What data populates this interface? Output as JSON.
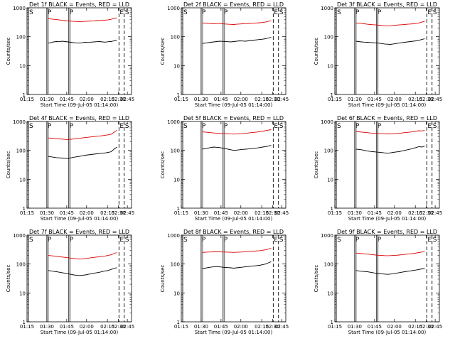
{
  "chart_data": [
    {
      "type": "line",
      "title": "Det 1f BLACK = Events, RED = LLD",
      "xlabel": "Start Time (09-Jul-05 01:14:00)",
      "ylabel": "Counts/sec",
      "yscale": "log",
      "ylim": [
        1,
        1000
      ],
      "y_ticks": [
        "1",
        "10",
        "100",
        "1000"
      ],
      "x_ticks": [
        "01:15",
        "01:30",
        "01:45",
        "02:00",
        "02:15",
        "02:30",
        "02:45"
      ],
      "markers": [
        "S",
        "P",
        "P",
        "E",
        "S"
      ],
      "series": [
        {
          "name": "Events",
          "color": "#000000",
          "values": [
            60,
            62,
            66,
            68,
            67,
            70,
            68,
            66,
            64,
            62,
            61,
            60,
            62,
            64,
            63,
            65,
            66,
            67,
            68,
            66,
            65,
            67,
            68,
            72,
            75
          ]
        },
        {
          "name": "LLD",
          "color": "#dd0000",
          "values": [
            420,
            410,
            400,
            390,
            380,
            370,
            360,
            350,
            345,
            340,
            335,
            330,
            335,
            340,
            345,
            350,
            355,
            360,
            365,
            370,
            375,
            385,
            400,
            430,
            450
          ]
        }
      ]
    },
    {
      "type": "line",
      "title": "Det 2f BLACK = Events, RED = LLD",
      "xlabel": "Start Time (09-Jul-05 01:14:00)",
      "ylabel": "Counts/sec",
      "yscale": "log",
      "ylim": [
        1,
        1000
      ],
      "y_ticks": [
        "1",
        "10",
        "100",
        "1000"
      ],
      "x_ticks": [
        "01:15",
        "01:30",
        "01:45",
        "02:00",
        "02:15",
        "02:30",
        "02:45"
      ],
      "markers": [
        "S",
        "P",
        "P",
        "E",
        "S"
      ],
      "series": [
        {
          "name": "Events",
          "color": "#000000",
          "values": [
            58,
            60,
            62,
            64,
            66,
            68,
            70,
            69,
            68,
            67,
            66,
            68,
            70,
            72,
            71,
            70,
            72,
            74,
            76,
            78,
            80,
            82,
            85,
            90,
            95
          ]
        },
        {
          "name": "LLD",
          "color": "#dd0000",
          "values": [
            300,
            295,
            290,
            285,
            280,
            285,
            290,
            280,
            275,
            270,
            268,
            265,
            270,
            275,
            280,
            285,
            288,
            290,
            295,
            300,
            305,
            310,
            320,
            340,
            360
          ]
        }
      ]
    },
    {
      "type": "line",
      "title": "Det 3f BLACK = Events, RED = LLD",
      "xlabel": "Start Time (09-Jul-05 01:14:00)",
      "ylabel": "Counts/sec",
      "yscale": "log",
      "ylim": [
        1,
        1000
      ],
      "y_ticks": [
        "1",
        "10",
        "100",
        "1000"
      ],
      "x_ticks": [
        "01:15",
        "01:30",
        "01:45",
        "02:00",
        "02:15",
        "02:30",
        "02:45"
      ],
      "markers": [
        "S",
        "P",
        "P",
        "E",
        "S"
      ],
      "series": [
        {
          "name": "Events",
          "color": "#000000",
          "values": [
            70,
            68,
            66,
            65,
            64,
            63,
            62,
            61,
            60,
            58,
            56,
            55,
            54,
            56,
            58,
            60,
            62,
            64,
            66,
            68,
            70,
            72,
            75,
            80,
            85
          ]
        },
        {
          "name": "LLD",
          "color": "#dd0000",
          "values": [
            300,
            295,
            290,
            280,
            270,
            265,
            260,
            255,
            250,
            245,
            240,
            238,
            240,
            245,
            250,
            255,
            260,
            265,
            270,
            275,
            280,
            290,
            300,
            320,
            340
          ]
        }
      ]
    },
    {
      "type": "line",
      "title": "Det 4f BLACK = Events, RED = LLD",
      "xlabel": "Start Time (09-Jul-05 01:14:00)",
      "ylabel": "Counts/sec",
      "yscale": "log",
      "ylim": [
        1,
        1000
      ],
      "y_ticks": [
        "1",
        "10",
        "100",
        "1000"
      ],
      "x_ticks": [
        "01:15",
        "01:30",
        "01:45",
        "02:00",
        "02:15",
        "02:30",
        "02:45"
      ],
      "markers": [
        "S",
        "P",
        "P",
        "E",
        "S"
      ],
      "series": [
        {
          "name": "Events",
          "color": "#000000",
          "values": [
            62,
            60,
            58,
            56,
            55,
            54,
            53,
            52,
            55,
            58,
            60,
            62,
            65,
            68,
            70,
            72,
            74,
            76,
            78,
            80,
            82,
            85,
            90,
            110,
            130
          ]
        },
        {
          "name": "LLD",
          "color": "#dd0000",
          "values": [
            270,
            265,
            260,
            255,
            250,
            245,
            240,
            238,
            242,
            248,
            255,
            262,
            270,
            278,
            285,
            292,
            300,
            308,
            315,
            325,
            335,
            345,
            360,
            420,
            500
          ]
        }
      ]
    },
    {
      "type": "line",
      "title": "Det 5f BLACK = Events, RED = LLD",
      "xlabel": "Start Time (09-Jul-05 01:14:00)",
      "ylabel": "Counts/sec",
      "yscale": "log",
      "ylim": [
        1,
        1000
      ],
      "y_ticks": [
        "1",
        "10",
        "100",
        "1000"
      ],
      "x_ticks": [
        "01:15",
        "01:30",
        "01:45",
        "02:00",
        "02:15",
        "02:30",
        "02:45"
      ],
      "markers": [
        "S",
        "P",
        "P",
        "E",
        "S"
      ],
      "series": [
        {
          "name": "Events",
          "color": "#000000",
          "values": [
            110,
            115,
            120,
            125,
            130,
            128,
            125,
            120,
            115,
            110,
            105,
            100,
            102,
            105,
            108,
            110,
            112,
            115,
            118,
            120,
            125,
            130,
            135,
            140,
            150
          ]
        },
        {
          "name": "LLD",
          "color": "#dd0000",
          "values": [
            440,
            430,
            420,
            410,
            400,
            395,
            390,
            385,
            380,
            375,
            370,
            368,
            370,
            375,
            380,
            390,
            400,
            410,
            420,
            430,
            445,
            460,
            480,
            500,
            520
          ]
        }
      ]
    },
    {
      "type": "line",
      "title": "Det 6f BLACK = Events, RED = LLD",
      "xlabel": "Start Time (09-Jul-05 01:14:00)",
      "ylabel": "Counts/sec",
      "yscale": "log",
      "ylim": [
        1,
        1000
      ],
      "y_ticks": [
        "1",
        "10",
        "100",
        "1000"
      ],
      "x_ticks": [
        "01:15",
        "01:30",
        "01:45",
        "02:00",
        "02:15",
        "02:30",
        "02:45"
      ],
      "markers": [
        "S",
        "P",
        "P",
        "E",
        "S"
      ],
      "series": [
        {
          "name": "Events",
          "color": "#000000",
          "values": [
            110,
            108,
            105,
            100,
            95,
            92,
            90,
            88,
            86,
            84,
            82,
            80,
            82,
            85,
            88,
            90,
            95,
            100,
            105,
            110,
            118,
            125,
            135,
            130,
            140
          ]
        },
        {
          "name": "LLD",
          "color": "#dd0000",
          "values": [
            450,
            440,
            430,
            420,
            410,
            400,
            395,
            390,
            385,
            380,
            375,
            372,
            375,
            380,
            385,
            390,
            400,
            410,
            420,
            430,
            445,
            460,
            480,
            470,
            490
          ]
        }
      ]
    },
    {
      "type": "line",
      "title": "Det 7f BLACK = Events, RED = LLD",
      "xlabel": "Start Time (09-Jul-05 01:14:00)",
      "ylabel": "Counts/sec",
      "yscale": "log",
      "ylim": [
        1,
        1000
      ],
      "y_ticks": [
        "1",
        "10",
        "100",
        "1000"
      ],
      "x_ticks": [
        "01:15",
        "01:30",
        "01:45",
        "02:00",
        "02:15",
        "02:30",
        "02:45"
      ],
      "markers": [
        "S",
        "P",
        "P",
        "E",
        "S"
      ],
      "series": [
        {
          "name": "Events",
          "color": "#000000",
          "values": [
            60,
            58,
            56,
            54,
            52,
            50,
            48,
            46,
            44,
            42,
            41,
            40,
            41,
            42,
            44,
            46,
            48,
            50,
            52,
            55,
            58,
            60,
            65,
            70,
            75
          ]
        },
        {
          "name": "LLD",
          "color": "#dd0000",
          "values": [
            200,
            195,
            190,
            185,
            180,
            175,
            170,
            165,
            160,
            155,
            152,
            150,
            152,
            155,
            160,
            165,
            170,
            175,
            180,
            185,
            190,
            200,
            210,
            230,
            250
          ]
        }
      ]
    },
    {
      "type": "line",
      "title": "Det 8f BLACK = Events, RED = LLD",
      "xlabel": "Start Time (09-Jul-05 01:14:00)",
      "ylabel": "Counts/sec",
      "yscale": "log",
      "ylim": [
        1,
        1000
      ],
      "y_ticks": [
        "1",
        "10",
        "100",
        "1000"
      ],
      "x_ticks": [
        "01:15",
        "01:30",
        "01:45",
        "02:00",
        "02:15",
        "02:30",
        "02:45"
      ],
      "markers": [
        "S",
        "P",
        "P",
        "E",
        "S"
      ],
      "series": [
        {
          "name": "Events",
          "color": "#000000",
          "values": [
            70,
            72,
            75,
            78,
            80,
            82,
            80,
            78,
            76,
            75,
            74,
            72,
            74,
            76,
            78,
            80,
            82,
            84,
            86,
            88,
            90,
            95,
            100,
            110,
            120
          ]
        },
        {
          "name": "LLD",
          "color": "#dd0000",
          "values": [
            250,
            255,
            260,
            262,
            265,
            268,
            265,
            262,
            260,
            258,
            255,
            252,
            255,
            258,
            262,
            266,
            270,
            275,
            280,
            285,
            290,
            300,
            310,
            330,
            350
          ]
        }
      ]
    },
    {
      "type": "line",
      "title": "Det 9f BLACK = Events, RED = LLD",
      "xlabel": "Start Time (09-Jul-05 01:14:00)",
      "ylabel": "Counts/sec",
      "yscale": "log",
      "ylim": [
        1,
        1000
      ],
      "y_ticks": [
        "1",
        "10",
        "100",
        "1000"
      ],
      "x_ticks": [
        "01:15",
        "01:30",
        "01:45",
        "02:00",
        "02:15",
        "02:30",
        "02:45"
      ],
      "markers": [
        "S",
        "P",
        "P",
        "E",
        "S"
      ],
      "series": [
        {
          "name": "Events",
          "color": "#000000",
          "values": [
            60,
            58,
            56,
            55,
            54,
            52,
            50,
            48,
            47,
            46,
            45,
            44,
            45,
            46,
            48,
            50,
            52,
            54,
            56,
            58,
            60,
            62,
            65,
            68,
            70
          ]
        },
        {
          "name": "LLD",
          "color": "#dd0000",
          "values": [
            240,
            235,
            230,
            225,
            220,
            215,
            210,
            205,
            200,
            198,
            196,
            195,
            196,
            198,
            200,
            205,
            210,
            215,
            220,
            225,
            230,
            240,
            250,
            260,
            270
          ]
        }
      ]
    }
  ]
}
